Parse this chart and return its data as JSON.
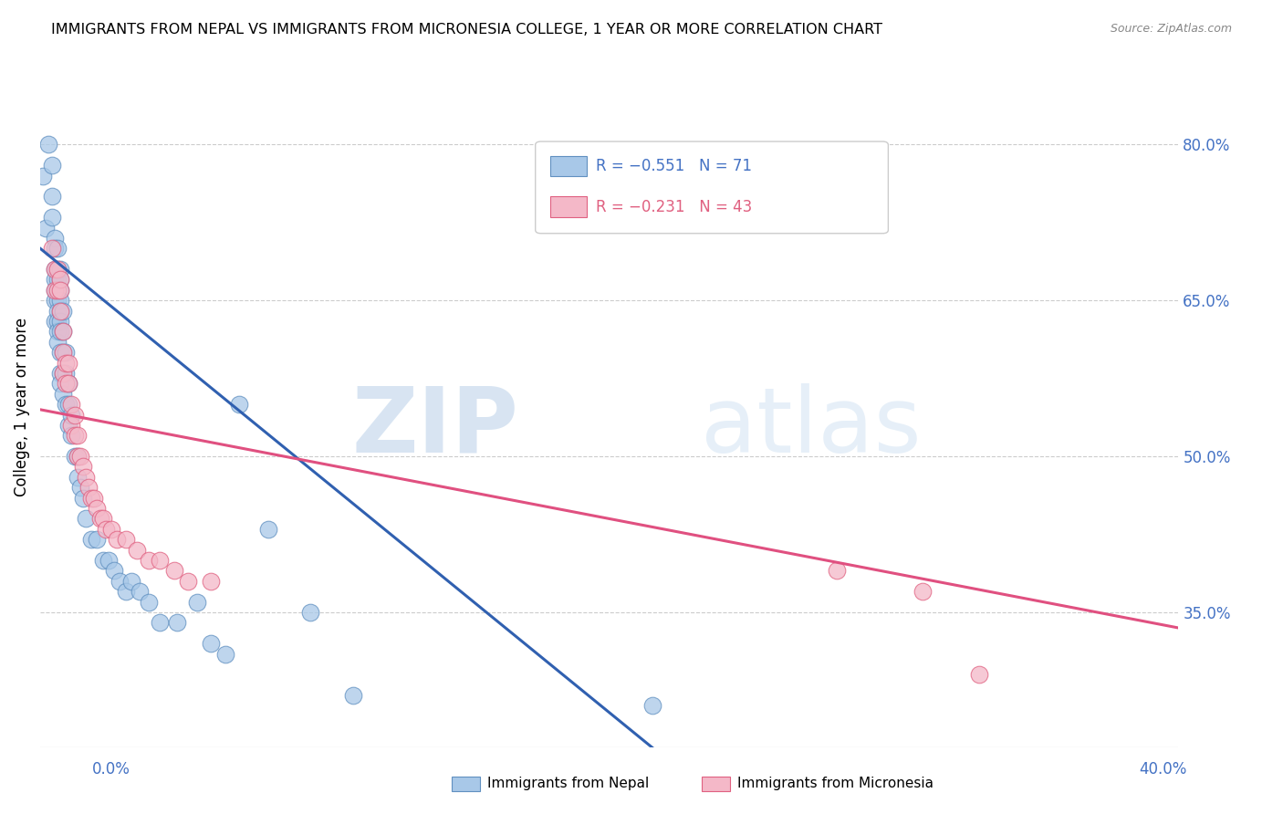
{
  "title": "IMMIGRANTS FROM NEPAL VS IMMIGRANTS FROM MICRONESIA COLLEGE, 1 YEAR OR MORE CORRELATION CHART",
  "source": "Source: ZipAtlas.com",
  "ylabel": "College, 1 year or more",
  "right_yticks": [
    "80.0%",
    "65.0%",
    "50.0%",
    "35.0%"
  ],
  "right_ytick_vals": [
    0.8,
    0.65,
    0.5,
    0.35
  ],
  "xmin": 0.0,
  "xmax": 0.4,
  "ymin": 0.22,
  "ymax": 0.875,
  "nepal_color": "#a8c8e8",
  "micronesia_color": "#f4b8c8",
  "nepal_edge_color": "#6090c0",
  "micronesia_edge_color": "#e06080",
  "nepal_line_color": "#3060b0",
  "micronesia_line_color": "#e05080",
  "watermark_zip": "ZIP",
  "watermark_atlas": "atlas",
  "watermark_color": "#ccddf0",
  "nepal_line_x0": 0.0,
  "nepal_line_y0": 0.7,
  "nepal_line_x1": 0.215,
  "nepal_line_y1": 0.22,
  "micronesia_line_x0": 0.0,
  "micronesia_line_y0": 0.545,
  "micronesia_line_x1": 0.4,
  "micronesia_line_y1": 0.335,
  "nepal_x": [
    0.001,
    0.002,
    0.003,
    0.004,
    0.004,
    0.004,
    0.005,
    0.005,
    0.005,
    0.005,
    0.005,
    0.005,
    0.005,
    0.006,
    0.006,
    0.006,
    0.006,
    0.006,
    0.006,
    0.006,
    0.006,
    0.006,
    0.007,
    0.007,
    0.007,
    0.007,
    0.007,
    0.007,
    0.007,
    0.007,
    0.007,
    0.007,
    0.008,
    0.008,
    0.008,
    0.008,
    0.008,
    0.009,
    0.009,
    0.009,
    0.01,
    0.01,
    0.01,
    0.011,
    0.011,
    0.012,
    0.013,
    0.013,
    0.014,
    0.015,
    0.016,
    0.018,
    0.02,
    0.022,
    0.024,
    0.026,
    0.028,
    0.03,
    0.032,
    0.035,
    0.038,
    0.042,
    0.048,
    0.055,
    0.06,
    0.065,
    0.07,
    0.08,
    0.095,
    0.11,
    0.215
  ],
  "nepal_y": [
    0.77,
    0.72,
    0.8,
    0.78,
    0.75,
    0.73,
    0.71,
    0.7,
    0.68,
    0.67,
    0.66,
    0.65,
    0.63,
    0.7,
    0.68,
    0.67,
    0.66,
    0.65,
    0.64,
    0.63,
    0.62,
    0.61,
    0.68,
    0.67,
    0.66,
    0.65,
    0.64,
    0.63,
    0.62,
    0.6,
    0.58,
    0.57,
    0.64,
    0.62,
    0.6,
    0.58,
    0.56,
    0.6,
    0.58,
    0.55,
    0.57,
    0.55,
    0.53,
    0.54,
    0.52,
    0.5,
    0.5,
    0.48,
    0.47,
    0.46,
    0.44,
    0.42,
    0.42,
    0.4,
    0.4,
    0.39,
    0.38,
    0.37,
    0.38,
    0.37,
    0.36,
    0.34,
    0.34,
    0.36,
    0.32,
    0.31,
    0.55,
    0.43,
    0.35,
    0.27,
    0.26
  ],
  "micronesia_x": [
    0.004,
    0.005,
    0.005,
    0.006,
    0.006,
    0.007,
    0.007,
    0.007,
    0.008,
    0.008,
    0.008,
    0.009,
    0.009,
    0.01,
    0.01,
    0.011,
    0.011,
    0.012,
    0.012,
    0.013,
    0.013,
    0.014,
    0.015,
    0.016,
    0.017,
    0.018,
    0.019,
    0.02,
    0.021,
    0.022,
    0.023,
    0.025,
    0.027,
    0.03,
    0.034,
    0.038,
    0.042,
    0.047,
    0.052,
    0.06,
    0.28,
    0.31,
    0.33
  ],
  "micronesia_y": [
    0.7,
    0.68,
    0.66,
    0.68,
    0.66,
    0.67,
    0.66,
    0.64,
    0.62,
    0.6,
    0.58,
    0.59,
    0.57,
    0.59,
    0.57,
    0.55,
    0.53,
    0.54,
    0.52,
    0.52,
    0.5,
    0.5,
    0.49,
    0.48,
    0.47,
    0.46,
    0.46,
    0.45,
    0.44,
    0.44,
    0.43,
    0.43,
    0.42,
    0.42,
    0.41,
    0.4,
    0.4,
    0.39,
    0.38,
    0.38,
    0.39,
    0.37,
    0.29
  ]
}
